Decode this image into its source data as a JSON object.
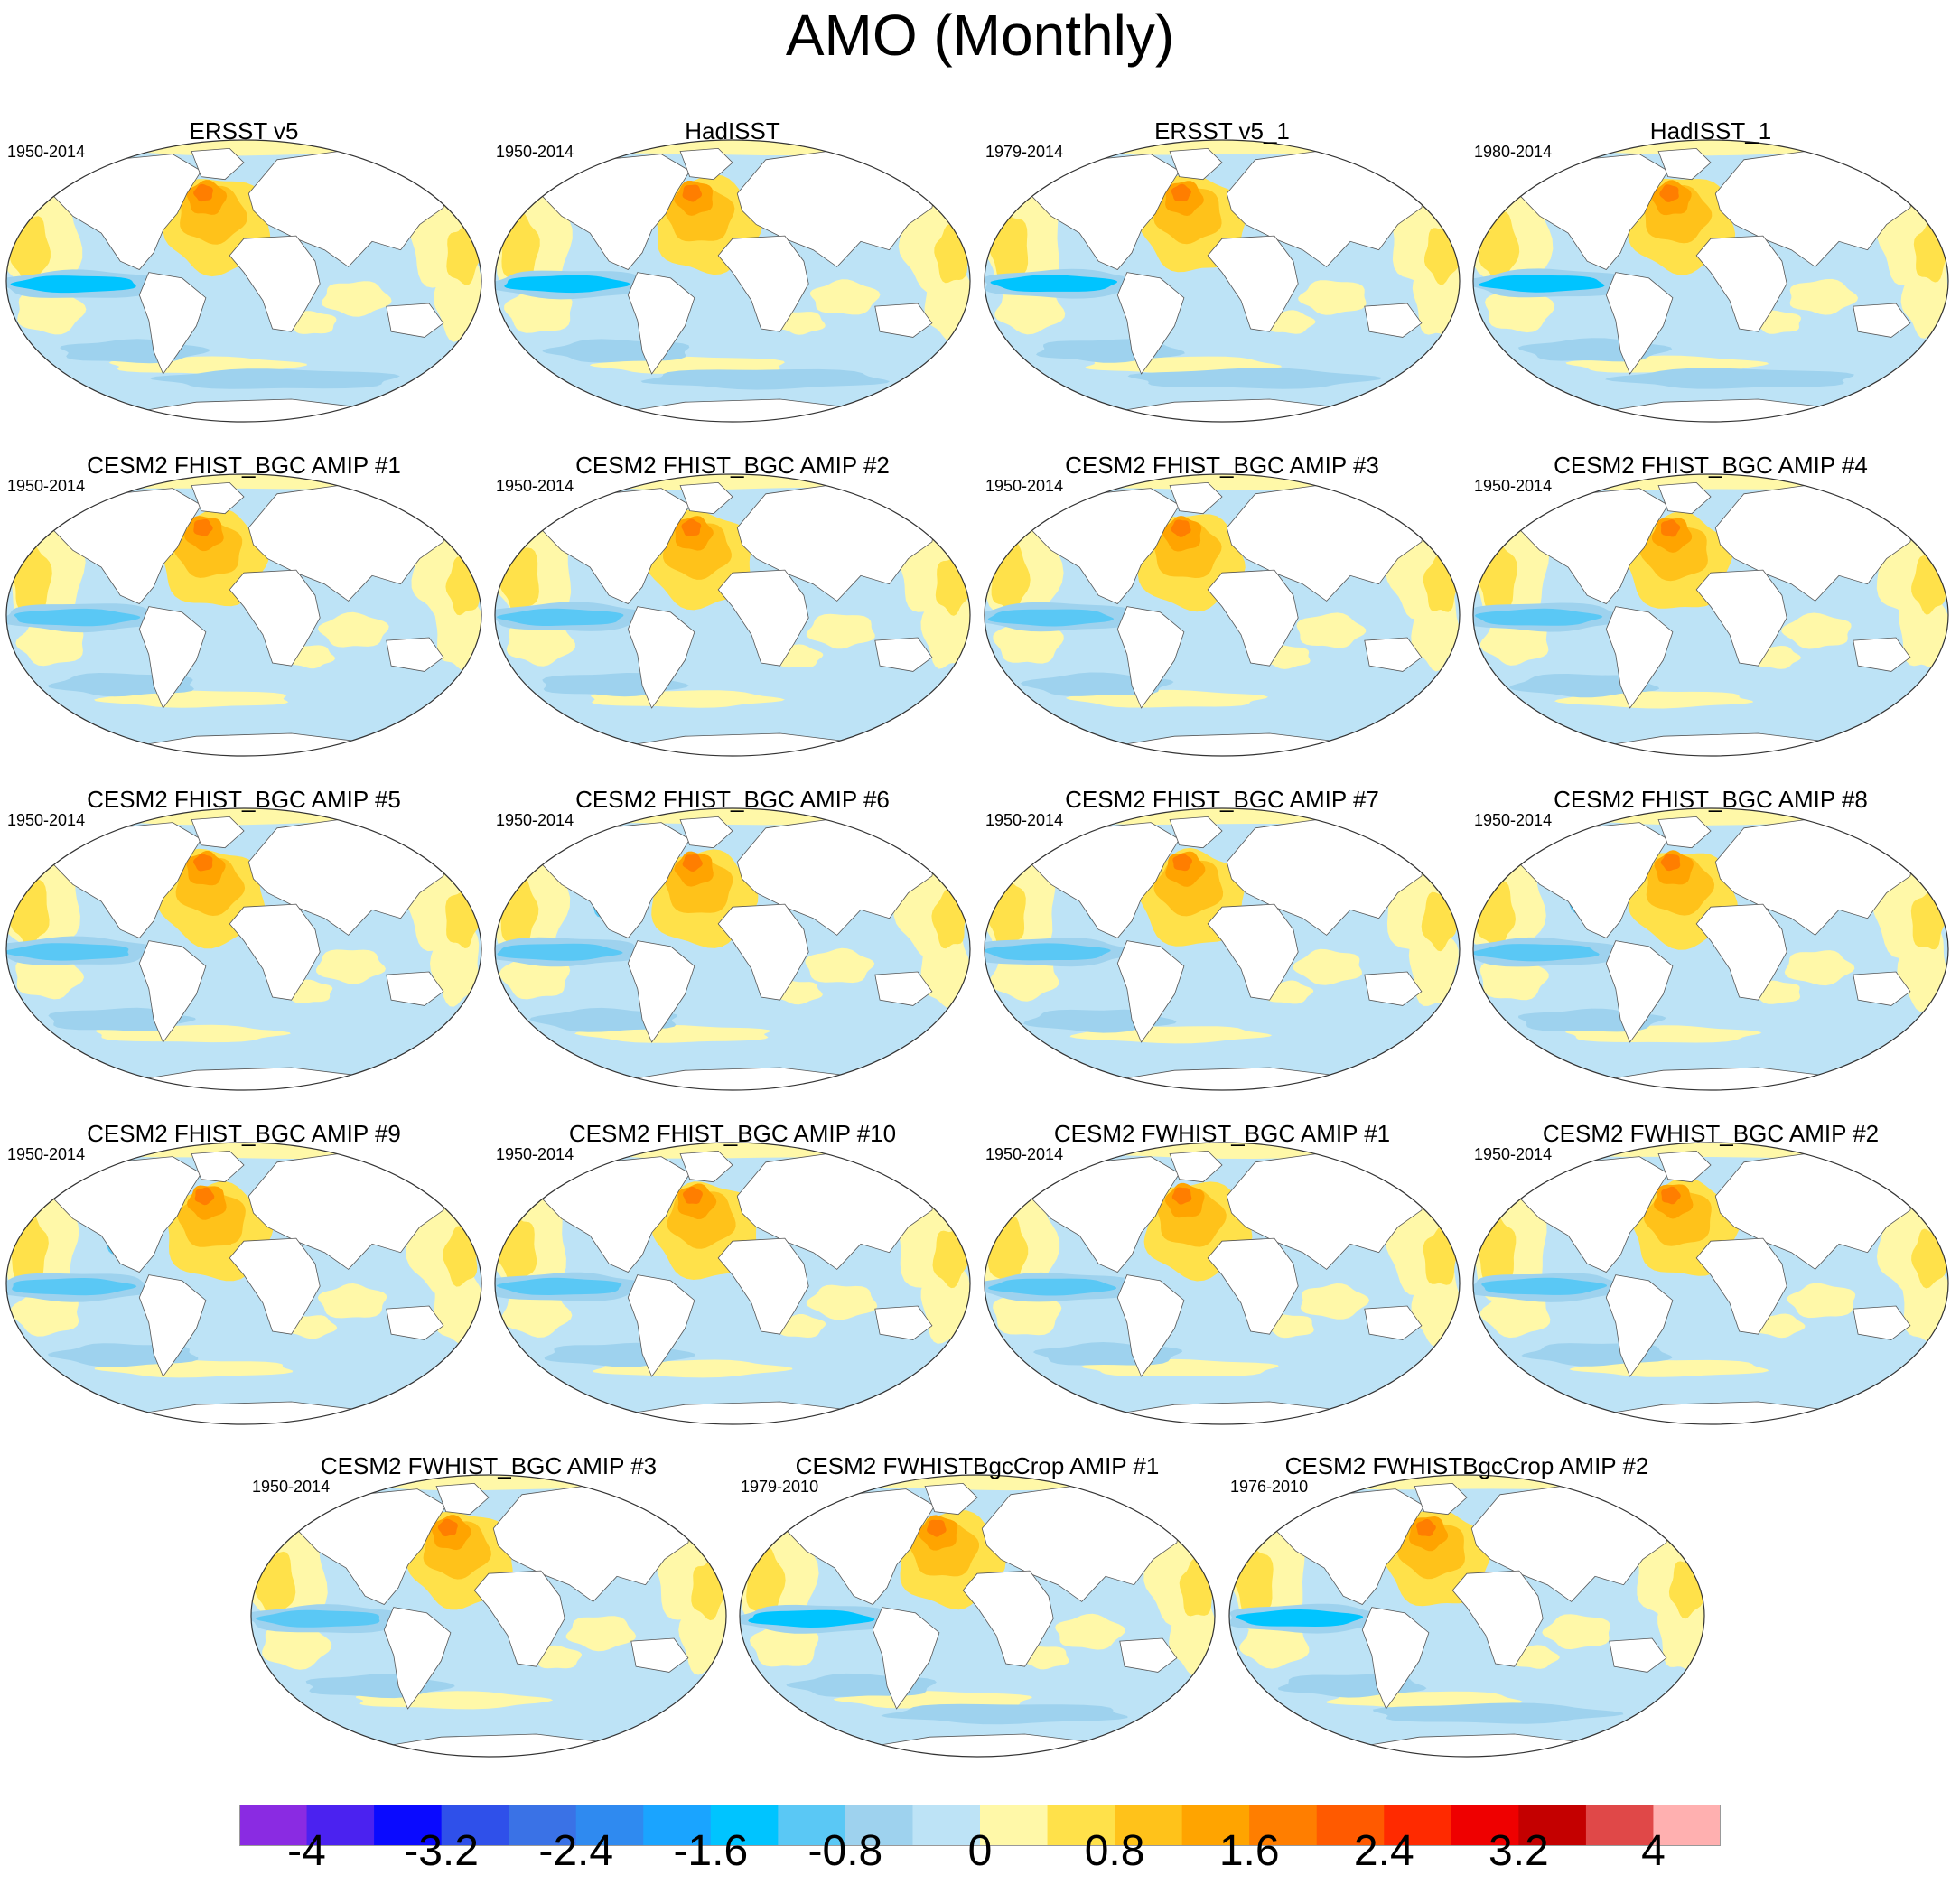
{
  "title": "AMO (Monthly)",
  "panels": [
    {
      "title": "ERSST v5",
      "period": "1950-2014",
      "style": "obs"
    },
    {
      "title": "HadISST",
      "period": "1950-2014",
      "style": "obs"
    },
    {
      "title": "ERSST v5_1",
      "period": "1979-2014",
      "style": "obs"
    },
    {
      "title": "HadISST_1",
      "period": "1980-2014",
      "style": "obs"
    },
    {
      "title": "CESM2 FHIST_BGC AMIP #1",
      "period": "1950-2014",
      "style": "model"
    },
    {
      "title": "CESM2 FHIST_BGC AMIP #2",
      "period": "1950-2014",
      "style": "model"
    },
    {
      "title": "CESM2 FHIST_BGC AMIP #3",
      "period": "1950-2014",
      "style": "model"
    },
    {
      "title": "CESM2 FHIST_BGC AMIP #4",
      "period": "1950-2014",
      "style": "model"
    },
    {
      "title": "CESM2 FHIST_BGC AMIP #5",
      "period": "1950-2014",
      "style": "model"
    },
    {
      "title": "CESM2 FHIST_BGC AMIP #6",
      "period": "1950-2014",
      "style": "model"
    },
    {
      "title": "CESM2 FHIST_BGC AMIP #7",
      "period": "1950-2014",
      "style": "model"
    },
    {
      "title": "CESM2 FHIST_BGC AMIP #8",
      "period": "1950-2014",
      "style": "model"
    },
    {
      "title": "CESM2 FHIST_BGC AMIP #9",
      "period": "1950-2014",
      "style": "model"
    },
    {
      "title": "CESM2 FHIST_BGC AMIP #10",
      "period": "1950-2014",
      "style": "model"
    },
    {
      "title": "CESM2 FWHIST_BGC AMIP #1",
      "period": "1950-2014",
      "style": "model"
    },
    {
      "title": "CESM2 FWHIST_BGC AMIP #2",
      "period": "1950-2014",
      "style": "model"
    },
    {
      "title": "CESM2 FWHIST_BGC AMIP #3",
      "period": "1950-2014",
      "style": "model"
    },
    {
      "title": "CESM2 FWHISTBgcCrop AMIP #1",
      "period": "1979-2010",
      "style": "obs"
    },
    {
      "title": "CESM2 FWHISTBgcCrop AMIP #2",
      "period": "1976-2010",
      "style": "obs"
    }
  ],
  "colorbar": {
    "colors": [
      "#8a2be2",
      "#4b22f0",
      "#0a0aff",
      "#2f50ea",
      "#3a72e6",
      "#2f8af0",
      "#1aa4ff",
      "#00c4ff",
      "#5ac8f5",
      "#9ed2ee",
      "#bde3f6",
      "#fff8a8",
      "#ffe14a",
      "#ffc21a",
      "#ffa400",
      "#ff7e00",
      "#ff5a00",
      "#ff2a00",
      "#ef0000",
      "#c40000",
      "#e04848",
      "#ffb0b0"
    ],
    "labels": [
      "-4",
      "-3.2",
      "-2.4",
      "-1.6",
      "-0.8",
      "0",
      "0.8",
      "1.6",
      "2.4",
      "3.2",
      "4"
    ],
    "label_values": [
      -4,
      -3.2,
      -2.4,
      -1.6,
      -0.8,
      0,
      0.8,
      1.6,
      2.4,
      3.2,
      4
    ],
    "range": [
      -4.4,
      4.4
    ]
  }
}
